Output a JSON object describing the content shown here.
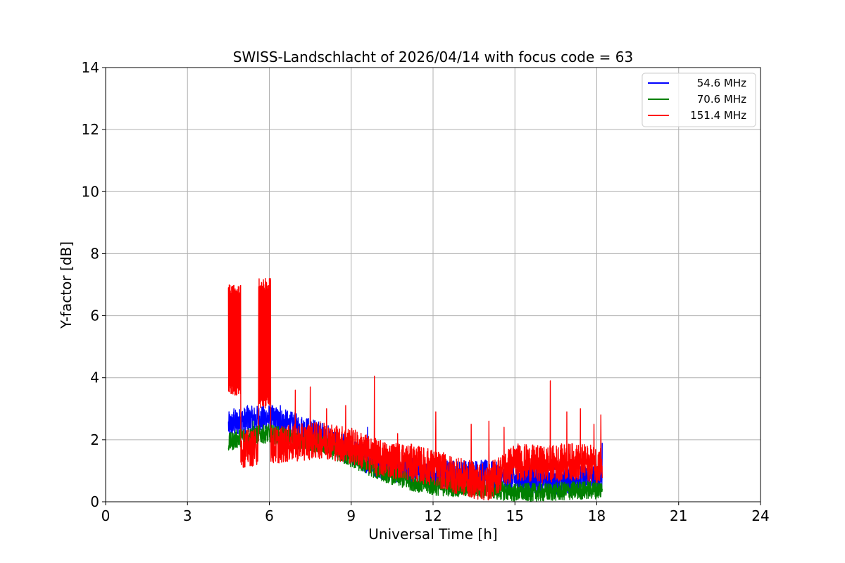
{
  "chart_data": {
    "type": "line",
    "title": "SWISS-Landschlacht of 2026/04/14 with focus code = 63",
    "xlabel": "Universal Time [h]",
    "ylabel": "Y-factor [dB]",
    "xlim": [
      0,
      24
    ],
    "ylim": [
      0,
      14
    ],
    "xticks": [
      0,
      3,
      6,
      9,
      12,
      15,
      18,
      21,
      24
    ],
    "yticks": [
      0,
      2,
      4,
      6,
      8,
      10,
      12,
      14
    ],
    "grid": true,
    "legend_position": "top-right",
    "series": [
      {
        "name": "54.6 MHz",
        "color": "#0000ff",
        "trend": [
          [
            4.5,
            2.45
          ],
          [
            5.0,
            2.6
          ],
          [
            6.0,
            2.7
          ],
          [
            7.0,
            2.4
          ],
          [
            8.0,
            2.1
          ],
          [
            9.0,
            1.6
          ],
          [
            10.0,
            1.2
          ],
          [
            11.0,
            1.0
          ],
          [
            12.0,
            0.9
          ],
          [
            13.0,
            0.9
          ],
          [
            14.0,
            0.9
          ],
          [
            15.0,
            0.7
          ],
          [
            16.0,
            0.7
          ],
          [
            17.0,
            0.7
          ],
          [
            18.2,
            0.8
          ]
        ],
        "noise": 0.45,
        "spikes": [
          [
            4.7,
            3.0
          ],
          [
            5.2,
            3.1
          ],
          [
            6.4,
            3.1
          ],
          [
            9.6,
            2.4
          ],
          [
            15.1,
            1.8
          ],
          [
            17.3,
            1.6
          ],
          [
            18.2,
            1.9
          ]
        ]
      },
      {
        "name": "70.6 MHz",
        "color": "#008000",
        "trend": [
          [
            4.5,
            1.9
          ],
          [
            5.0,
            2.1
          ],
          [
            6.0,
            2.2
          ],
          [
            7.0,
            2.0
          ],
          [
            8.0,
            1.8
          ],
          [
            9.0,
            1.4
          ],
          [
            10.0,
            1.0
          ],
          [
            11.0,
            0.7
          ],
          [
            12.0,
            0.5
          ],
          [
            13.0,
            0.45
          ],
          [
            14.0,
            0.4
          ],
          [
            15.0,
            0.3
          ],
          [
            16.0,
            0.3
          ],
          [
            17.0,
            0.35
          ],
          [
            18.2,
            0.4
          ]
        ],
        "noise": 0.3,
        "spikes": [
          [
            5.4,
            2.6
          ],
          [
            7.8,
            2.2
          ],
          [
            9.3,
            1.8
          ]
        ]
      },
      {
        "name": "151.4 MHz",
        "color": "#ff0000",
        "trend": [
          [
            4.5,
            1.9
          ],
          [
            5.0,
            1.7
          ],
          [
            6.0,
            1.8
          ],
          [
            7.0,
            1.9
          ],
          [
            8.0,
            2.0
          ],
          [
            9.0,
            1.8
          ],
          [
            10.0,
            1.4
          ],
          [
            11.0,
            1.3
          ],
          [
            12.0,
            1.1
          ],
          [
            13.0,
            0.8
          ],
          [
            14.0,
            0.6
          ],
          [
            15.0,
            1.3
          ],
          [
            16.0,
            1.2
          ],
          [
            17.0,
            1.3
          ],
          [
            18.2,
            1.2
          ]
        ],
        "noise": 0.6,
        "bursts": [
          {
            "start": 4.5,
            "end": 4.95,
            "low": 3.4,
            "high": 7.0
          },
          {
            "start": 5.6,
            "end": 6.05,
            "low": 3.0,
            "high": 7.2
          }
        ],
        "spikes": [
          [
            6.95,
            3.6
          ],
          [
            7.5,
            3.7
          ],
          [
            8.1,
            3.0
          ],
          [
            8.8,
            3.1
          ],
          [
            9.85,
            4.05
          ],
          [
            10.7,
            2.2
          ],
          [
            12.1,
            2.9
          ],
          [
            13.4,
            2.5
          ],
          [
            14.05,
            2.6
          ],
          [
            14.6,
            2.4
          ],
          [
            16.3,
            3.9
          ],
          [
            16.9,
            2.9
          ],
          [
            17.4,
            3.0
          ],
          [
            17.9,
            2.5
          ],
          [
            18.15,
            2.8
          ]
        ]
      }
    ]
  }
}
